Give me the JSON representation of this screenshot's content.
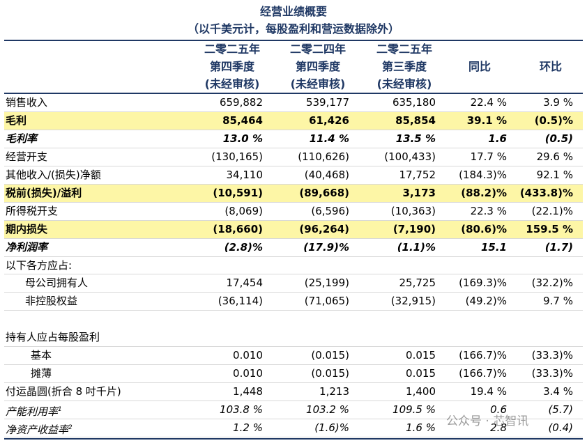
{
  "header": {
    "title": "经营业绩概要",
    "subtitle": "（以千美元计，每股盈利和营运数据除外）"
  },
  "table": {
    "columns": [
      [
        "二零二五年",
        "第四季度",
        "(未经审核)"
      ],
      [
        "二零二四年",
        "第四季度",
        "(未经审核)"
      ],
      [
        "二零二五年",
        "第三季度",
        "(未经审核)"
      ],
      [
        "同比"
      ],
      [
        "环比"
      ]
    ],
    "rows": [
      {
        "label": "销售收入",
        "cells": [
          "659,882",
          "539,177",
          "635,180",
          "22.4 %",
          "3.9 %"
        ],
        "style": "normal"
      },
      {
        "label": "毛利",
        "cells": [
          "85,464",
          "61,426",
          "85,854",
          "39.1 %",
          "(0.5)%"
        ],
        "style": "highlight"
      },
      {
        "label": "毛利率",
        "cells": [
          "13.0 %",
          "11.4 %",
          "13.5 %",
          "1.6",
          "(0.5)"
        ],
        "style": "bold-italic"
      },
      {
        "label": "经营开支",
        "cells": [
          "(130,165)",
          "(110,626)",
          "(100,433)",
          "17.7 %",
          "29.6 %"
        ],
        "style": "normal"
      },
      {
        "label": "其他收入/(损失)净额",
        "cells": [
          "34,110",
          "(40,468)",
          "17,752",
          "(184.3)%",
          "92.1 %"
        ],
        "style": "normal"
      },
      {
        "label": "税前(损失)/溢利",
        "cells": [
          "(10,591)",
          "(89,668)",
          "3,173",
          "(88.2)%",
          "(433.8)%"
        ],
        "style": "highlight"
      },
      {
        "label": "所得税开支",
        "cells": [
          "(8,069)",
          "(6,596)",
          "(10,363)",
          "22.3 %",
          "(22.1)%"
        ],
        "style": "normal"
      },
      {
        "label": "期内损失",
        "cells": [
          "(18,660)",
          "(96,264)",
          "(7,190)",
          "(80.6)%",
          "159.5 %"
        ],
        "style": "highlight"
      },
      {
        "label": "净利润率",
        "cells": [
          "(2.8)%",
          "(17.9)%",
          "(1.1)%",
          "15.1",
          "(1.7)"
        ],
        "style": "bold-italic"
      },
      {
        "label": "以下各方应占:",
        "style": "normal"
      },
      {
        "label": "母公司拥有人",
        "cells": [
          "17,454",
          "(25,199)",
          "25,725",
          "(169.3)%",
          "(32.2)%"
        ],
        "style": "indent"
      },
      {
        "label": "非控股权益",
        "cells": [
          "(36,114)",
          "(71,065)",
          "(32,915)",
          "(49.2)%",
          "9.7 %"
        ],
        "style": "indent"
      },
      {
        "label": "持有人应占每股盈利",
        "style": "normal",
        "gap_before": true
      },
      {
        "label": "基本",
        "cells": [
          "0.010",
          "(0.015)",
          "0.015",
          "(166.7)%",
          "(33.3)%"
        ],
        "style": "indent2"
      },
      {
        "label": "摊薄",
        "cells": [
          "0.010",
          "(0.015)",
          "0.015",
          "(166.7)%",
          "(33.3)%"
        ],
        "style": "indent2"
      },
      {
        "label": "付运晶圆(折合 8 吋千片)",
        "cells": [
          "1,448",
          "1,213",
          "1,400",
          "19.4 %",
          "3.4 %"
        ],
        "style": "normal"
      },
      {
        "label": "产能利用率",
        "sup": "1",
        "cells": [
          "103.8 %",
          "103.2 %",
          "109.5 %",
          "0.6",
          "(5.7)"
        ],
        "style": "italic"
      },
      {
        "label": "净资产收益率",
        "sup": "2",
        "cells": [
          "1.2 %",
          "(1.6)%",
          "1.6 %",
          "2.8",
          "(0.4)"
        ],
        "style": "italic"
      }
    ]
  },
  "watermark": "公众号 · 芯智讯"
}
